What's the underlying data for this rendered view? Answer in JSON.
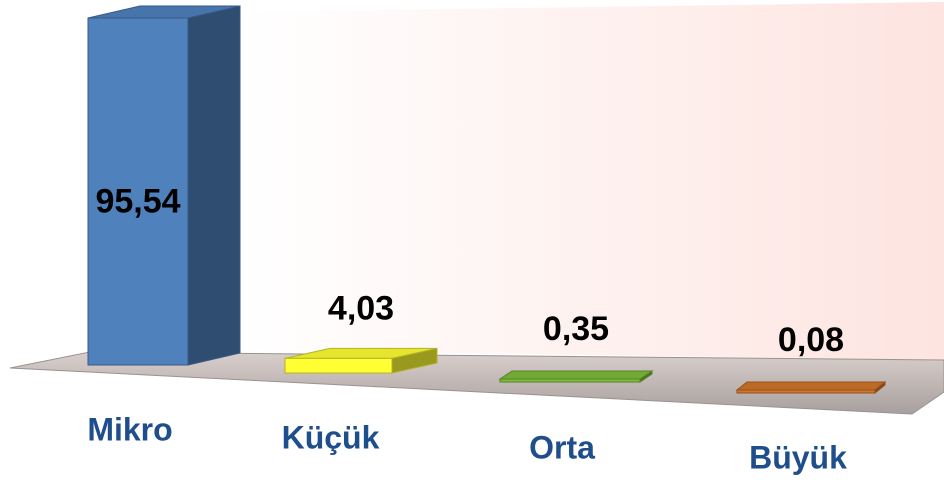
{
  "chart_data": {
    "type": "bar3d",
    "categories": [
      "Mikro",
      "Küçük",
      "Orta",
      "Büyük"
    ],
    "values": [
      95.54,
      4.03,
      0.35,
      0.08
    ],
    "value_labels": [
      "95,54",
      "4,03",
      "0,35",
      "0,08"
    ],
    "colors": [
      "#4f81bd",
      "#ffff33",
      "#7dbd3a",
      "#d2762a"
    ]
  }
}
